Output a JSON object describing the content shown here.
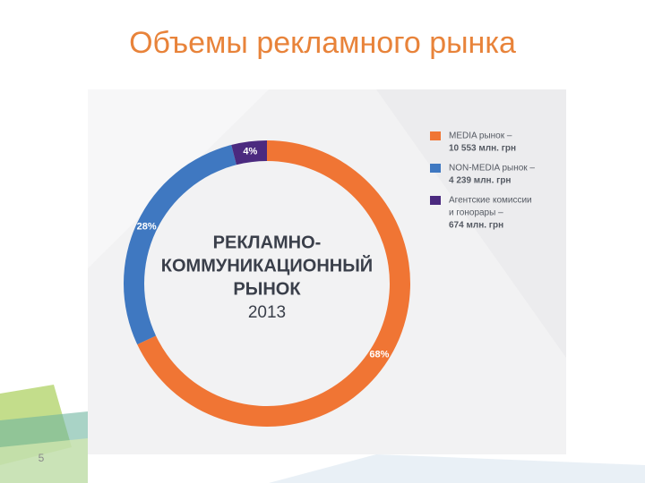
{
  "slide_title": "Объемы рекламного рынка",
  "page_number": 5,
  "chart_data": {
    "type": "donut",
    "center_text": [
      "РЕКЛАМНО-",
      "КОММУНИКАЦИОННЫЙ",
      "РЫНОК",
      "2013"
    ],
    "categories": [
      [
        "MEDIA рынок –",
        "10 553 млн. грн"
      ],
      [
        "NON-MEDIA рынок –",
        "4 239 млн. грн"
      ],
      [
        "Агентские комиссии",
        "и гонорары –",
        "674 млн. грн"
      ]
    ],
    "values": [
      68,
      28,
      4
    ],
    "value_labels": [
      "68%",
      "28%",
      "4%"
    ],
    "colors": [
      "#f07534",
      "#3f78c1",
      "#4b2a7f"
    ]
  }
}
